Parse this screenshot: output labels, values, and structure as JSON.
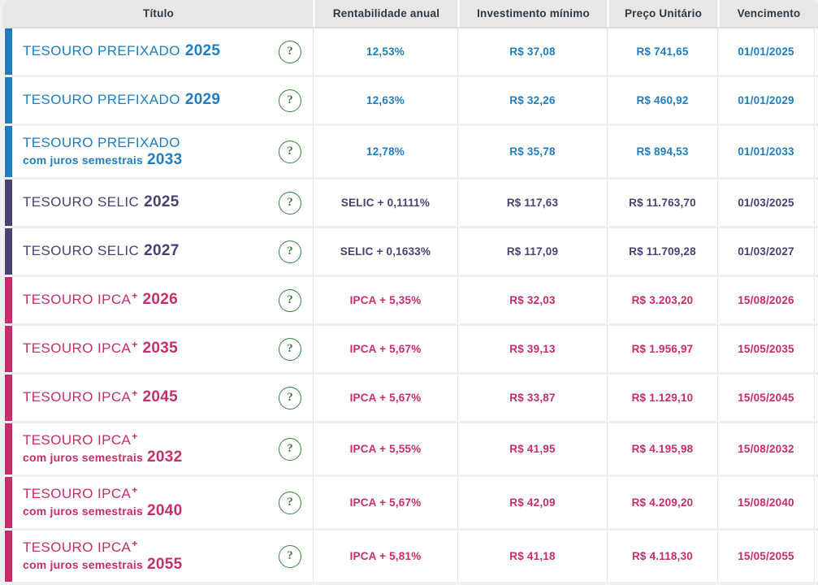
{
  "table": {
    "columns": [
      {
        "key": "titulo",
        "label": "Título"
      },
      {
        "key": "rentabilidade",
        "label": "Rentabilidade anual"
      },
      {
        "key": "investimento",
        "label": "Investimento mínimo"
      },
      {
        "key": "preco",
        "label": "Preço Unitário"
      },
      {
        "key": "vencimento",
        "label": "Vencimento"
      }
    ],
    "rows": [
      {
        "title": "TESOURO PREFIXADO",
        "plus": "",
        "subtitle": "",
        "year": "2025",
        "rentabilidade": "12,53%",
        "investimento": "R$ 37,08",
        "preco": "R$ 741,65",
        "vencimento": "01/01/2025",
        "color": "#1f7dc0"
      },
      {
        "title": "TESOURO PREFIXADO",
        "plus": "",
        "subtitle": "",
        "year": "2029",
        "rentabilidade": "12,63%",
        "investimento": "R$ 32,26",
        "preco": "R$ 460,92",
        "vencimento": "01/01/2029",
        "color": "#1f7dc0"
      },
      {
        "title": "TESOURO PREFIXADO",
        "plus": "",
        "subtitle": "com juros semestrais",
        "year": "2033",
        "rentabilidade": "12,78%",
        "investimento": "R$ 35,78",
        "preco": "R$ 894,53",
        "vencimento": "01/01/2033",
        "color": "#1f7dc0"
      },
      {
        "title": "TESOURO SELIC",
        "plus": "",
        "subtitle": "",
        "year": "2025",
        "rentabilidade": "SELIC + 0,1111%",
        "investimento": "R$ 117,63",
        "preco": "R$ 11.763,70",
        "vencimento": "01/03/2025",
        "color": "#4a4270"
      },
      {
        "title": "TESOURO SELIC",
        "plus": "",
        "subtitle": "",
        "year": "2027",
        "rentabilidade": "SELIC + 0,1633%",
        "investimento": "R$ 117,09",
        "preco": "R$ 11.709,28",
        "vencimento": "01/03/2027",
        "color": "#4a4270"
      },
      {
        "title": "TESOURO IPCA",
        "plus": "+",
        "subtitle": "",
        "year": "2026",
        "rentabilidade": "IPCA + 5,35%",
        "investimento": "R$ 32,03",
        "preco": "R$ 3.203,20",
        "vencimento": "15/08/2026",
        "color": "#c52e6b"
      },
      {
        "title": "TESOURO IPCA",
        "plus": "+",
        "subtitle": "",
        "year": "2035",
        "rentabilidade": "IPCA + 5,67%",
        "investimento": "R$ 39,13",
        "preco": "R$ 1.956,97",
        "vencimento": "15/05/2035",
        "color": "#c52e6b"
      },
      {
        "title": "TESOURO IPCA",
        "plus": "+",
        "subtitle": "",
        "year": "2045",
        "rentabilidade": "IPCA + 5,67%",
        "investimento": "R$ 33,87",
        "preco": "R$ 1.129,10",
        "vencimento": "15/05/2045",
        "color": "#c52e6b"
      },
      {
        "title": "TESOURO IPCA",
        "plus": "+",
        "subtitle": "com juros semestrais",
        "year": "2032",
        "rentabilidade": "IPCA + 5,55%",
        "investimento": "R$ 41,95",
        "preco": "R$ 4.195,98",
        "vencimento": "15/08/2032",
        "color": "#c52e6b"
      },
      {
        "title": "TESOURO IPCA",
        "plus": "+",
        "subtitle": "com juros semestrais",
        "year": "2040",
        "rentabilidade": "IPCA + 5,67%",
        "investimento": "R$ 42,09",
        "preco": "R$ 4.209,20",
        "vencimento": "15/08/2040",
        "color": "#c52e6b"
      },
      {
        "title": "TESOURO IPCA",
        "plus": "+",
        "subtitle": "com juros semestrais",
        "year": "2055",
        "rentabilidade": "IPCA + 5,81%",
        "investimento": "R$ 41,18",
        "preco": "R$ 4.118,30",
        "vencimento": "15/05/2055",
        "color": "#c52e6b"
      }
    ]
  },
  "help_icon_glyph": "?",
  "colors": {
    "prefixado": "#1f7dc0",
    "selic": "#4a4270",
    "ipca": "#c52e6b",
    "help_green": "#3a833e",
    "header_bg": "#e7e7e7",
    "header_text": "#2c3a45",
    "row_bg": "#ffffff",
    "page_bg": "#eff0f0"
  }
}
